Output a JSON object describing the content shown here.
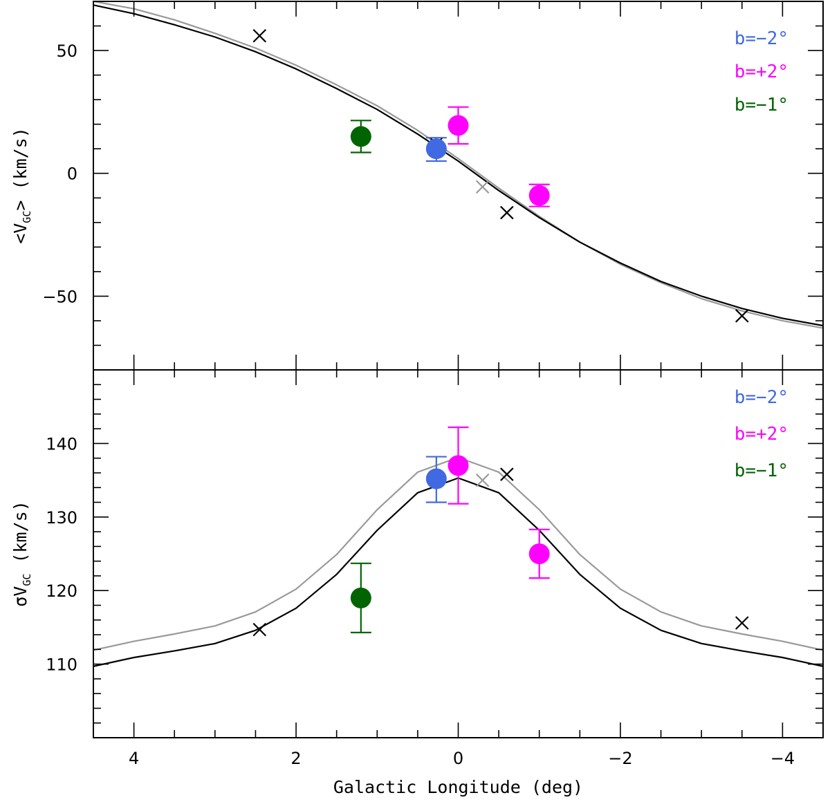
{
  "chart_data": {
    "type": "scatter",
    "xlabel": "Galactic Longitude (deg)",
    "xlim": [
      4.5,
      -4.5
    ],
    "x_ticks": [
      4,
      2,
      0,
      -2,
      -4
    ],
    "x_tick_labels": [
      "4",
      "2",
      "0",
      "−2",
      "−4"
    ],
    "colors": {
      "b_minus2": "#4169e1",
      "b_plus2": "#ff00ff",
      "b_minus1": "#006400",
      "model_black": "#000000",
      "model_gray": "#999999",
      "cross_black": "#000000",
      "cross_gray": "#999999"
    },
    "panels": [
      {
        "id": "mean",
        "ylabel": "<V_GC> (km/s)",
        "ylabel_prefix": "<V",
        "ylabel_sub": "GC",
        "ylabel_suffix": "> (km/s)",
        "ylim": [
          -80,
          70
        ],
        "y_ticks": [
          50,
          0,
          -50
        ],
        "y_tick_labels": [
          "50",
          "0",
          "−50"
        ],
        "legend": [
          {
            "label": "b=−2°",
            "color": "#4169e1"
          },
          {
            "label": "b=+2°",
            "color": "#ff00ff"
          },
          {
            "label": "b=−1°",
            "color": "#006400"
          }
        ],
        "model_black": {
          "x": [
            4.5,
            4,
            3.5,
            3,
            2.5,
            2,
            1.5,
            1,
            0.5,
            0,
            -0.5,
            -1,
            -1.5,
            -2,
            -2.5,
            -3,
            -3.5,
            -4,
            -4.5
          ],
          "y": [
            68.5,
            65,
            60.5,
            55.5,
            49.5,
            42.5,
            34.5,
            26,
            16,
            5,
            -7,
            -18,
            -28,
            -36.5,
            -44,
            -50,
            -55,
            -59,
            -62
          ]
        },
        "model_gray": {
          "x": [
            4.5,
            4,
            3.5,
            3,
            2.5,
            2,
            1.5,
            1,
            0.5,
            0,
            -0.5,
            -1,
            -1.5,
            -2,
            -2.5,
            -3,
            -3.5,
            -4,
            -4.5
          ],
          "y": [
            70,
            67,
            62.5,
            57,
            51,
            44,
            36,
            27.5,
            17.5,
            6,
            -6,
            -17.5,
            -28,
            -37,
            -44.5,
            -51,
            -56,
            -60,
            -63
          ]
        },
        "points": [
          {
            "group": "b=−2°",
            "x": 0.27,
            "y": 10,
            "err_lo": 5,
            "err_hi": 4.5,
            "color": "#4169e1"
          },
          {
            "group": "b=+2°",
            "x": 0.0,
            "y": 19.5,
            "err_lo": 7.5,
            "err_hi": 7.5,
            "color": "#ff00ff"
          },
          {
            "group": "b=+2°",
            "x": -1.0,
            "y": -9,
            "err_lo": 4.5,
            "err_hi": 4.5,
            "color": "#ff00ff"
          },
          {
            "group": "b=−1°",
            "x": 1.2,
            "y": 15,
            "err_lo": 6.5,
            "err_hi": 6.5,
            "color": "#006400"
          }
        ],
        "crosses": [
          {
            "x": 2.45,
            "y": 56,
            "color": "#000000"
          },
          {
            "x": 0.27,
            "y": 12,
            "color": "#000000"
          },
          {
            "x": -0.3,
            "y": -5.5,
            "color": "#999999"
          },
          {
            "x": -0.6,
            "y": -16,
            "color": "#000000"
          },
          {
            "x": -3.5,
            "y": -58,
            "color": "#000000"
          }
        ]
      },
      {
        "id": "dispersion",
        "ylabel": "σV_GC (km/s)",
        "ylabel_prefix": "σV",
        "ylabel_sub": "GC",
        "ylabel_suffix": " (km/s)",
        "ylim": [
          100,
          150
        ],
        "y_ticks": [
          140,
          130,
          120,
          110
        ],
        "y_tick_labels": [
          "140",
          "130",
          "120",
          "110"
        ],
        "legend": [
          {
            "label": "b=−2°",
            "color": "#4169e1"
          },
          {
            "label": "b=+2°",
            "color": "#ff00ff"
          },
          {
            "label": "b=−1°",
            "color": "#006400"
          }
        ],
        "model_black": {
          "x": [
            4.5,
            4,
            3.5,
            3,
            2.5,
            2,
            1.5,
            1,
            0.5,
            0,
            -0.5,
            -1,
            -1.5,
            -2,
            -2.5,
            -3,
            -3.5,
            -4,
            -4.5
          ],
          "y": [
            109.7,
            110.9,
            111.8,
            112.8,
            114.6,
            117.6,
            122.2,
            128.2,
            133.3,
            135.3,
            133.3,
            128.2,
            122.2,
            117.6,
            114.6,
            112.8,
            111.8,
            110.9,
            109.7
          ]
        },
        "model_gray": {
          "x": [
            4.5,
            4,
            3.5,
            3,
            2.5,
            2,
            1.5,
            1,
            0.5,
            0,
            -0.5,
            -1,
            -1.5,
            -2,
            -2.5,
            -3,
            -3.5,
            -4,
            -4.5
          ],
          "y": [
            111.9,
            113.1,
            114.1,
            115.2,
            117.1,
            120.2,
            124.9,
            131.0,
            136.1,
            138.1,
            136.1,
            131.0,
            124.9,
            120.2,
            117.1,
            115.2,
            114.1,
            113.1,
            111.9
          ]
        },
        "points": [
          {
            "group": "b=−2°",
            "x": 0.27,
            "y": 135.2,
            "err_lo": 3.2,
            "err_hi": 3.0,
            "color": "#4169e1"
          },
          {
            "group": "b=+2°",
            "x": 0.0,
            "y": 137.0,
            "err_lo": 5.2,
            "err_hi": 5.2,
            "color": "#ff00ff"
          },
          {
            "group": "b=+2°",
            "x": -1.0,
            "y": 125.0,
            "err_lo": 3.3,
            "err_hi": 3.3,
            "color": "#ff00ff"
          },
          {
            "group": "b=−1°",
            "x": 1.2,
            "y": 119.0,
            "err_lo": 4.7,
            "err_hi": 4.7,
            "color": "#006400"
          }
        ],
        "crosses": [
          {
            "x": 2.45,
            "y": 114.7,
            "color": "#000000"
          },
          {
            "x": 0.27,
            "y": 135.3,
            "color": "#000000"
          },
          {
            "x": -0.3,
            "y": 135.0,
            "color": "#999999"
          },
          {
            "x": -0.6,
            "y": 135.8,
            "color": "#000000"
          },
          {
            "x": -3.5,
            "y": 115.6,
            "color": "#000000"
          }
        ]
      }
    ]
  }
}
